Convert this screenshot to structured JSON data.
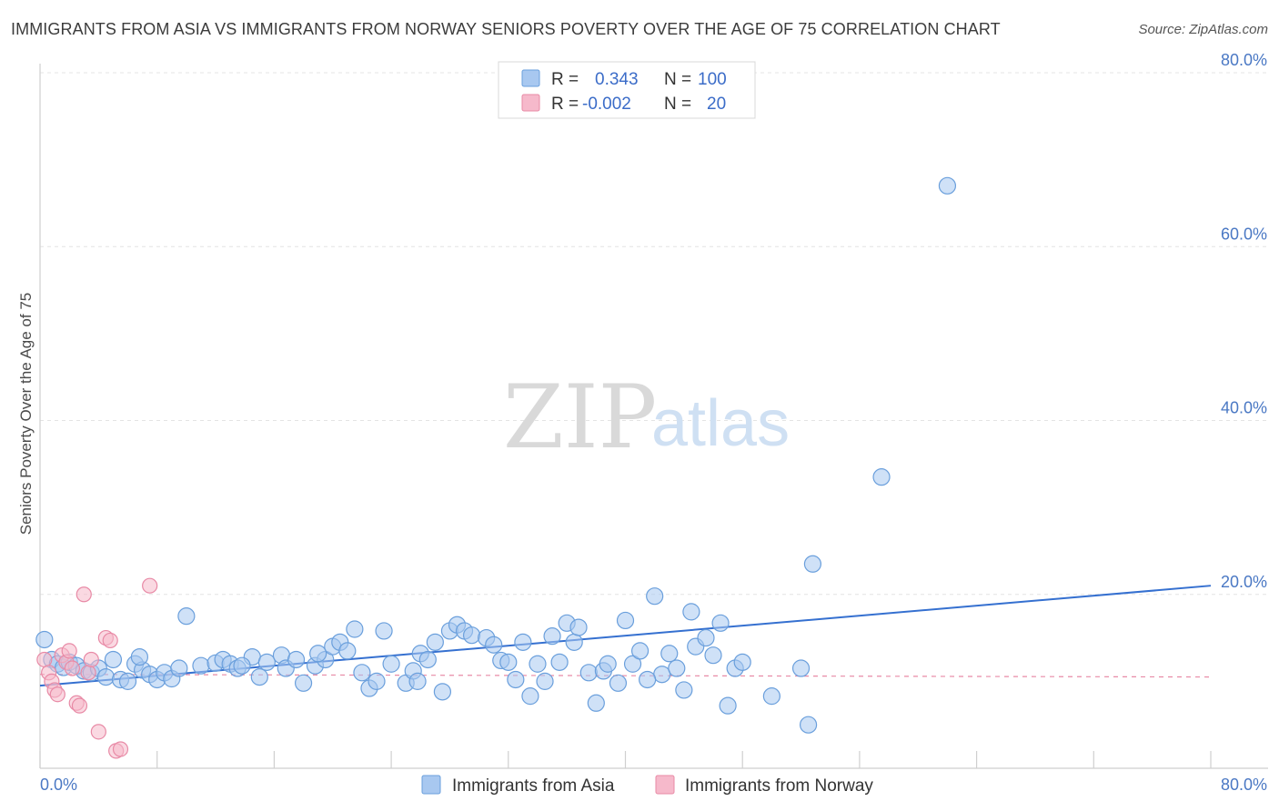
{
  "title": "IMMIGRANTS FROM ASIA VS IMMIGRANTS FROM NORWAY SENIORS POVERTY OVER THE AGE OF 75 CORRELATION CHART",
  "source": "Source: ZipAtlas.com",
  "watermark": {
    "zip": "ZIP",
    "atlas": "atlas"
  },
  "legend": {
    "rows": [
      {
        "r_label": "R =",
        "r_value": "0.343",
        "n_label": "N =",
        "n_value": "100",
        "color": "#a8c8f0"
      },
      {
        "r_label": "R =",
        "r_value": "-0.002",
        "n_label": "N =",
        "n_value": "20",
        "color": "#f6b9cb"
      }
    ]
  },
  "chart_data": {
    "type": "scatter",
    "title": "IMMIGRANTS FROM ASIA VS IMMIGRANTS FROM NORWAY SENIORS POVERTY OVER THE AGE OF 75 CORRELATION CHART",
    "xlabel": "",
    "ylabel": "Seniors Poverty Over the Age of 75",
    "xlim": [
      0,
      80
    ],
    "ylim": [
      0,
      80
    ],
    "x_tick_labels": [
      "0.0%",
      "80.0%"
    ],
    "y_tick_labels": [
      "20.0%",
      "40.0%",
      "60.0%",
      "80.0%"
    ],
    "y_ticks": [
      20,
      40,
      60,
      80
    ],
    "grid": true,
    "legend_position": "top-center",
    "series": [
      {
        "name": "Immigrants from Asia",
        "color": "#a8c8f0",
        "stroke": "#6a9fdc",
        "trend": {
          "x": [
            0,
            80
          ],
          "y": [
            9.5,
            21.0
          ],
          "color": "#3570d0",
          "style": "solid"
        },
        "points": [
          [
            0.3,
            14.8
          ],
          [
            0.8,
            12.5
          ],
          [
            1.2,
            12.0
          ],
          [
            1.6,
            11.6
          ],
          [
            2.0,
            12.2
          ],
          [
            2.5,
            11.8
          ],
          [
            3.0,
            11.2
          ],
          [
            3.5,
            11.0
          ],
          [
            4.0,
            11.5
          ],
          [
            4.5,
            10.5
          ],
          [
            5.0,
            12.5
          ],
          [
            5.5,
            10.2
          ],
          [
            6.0,
            10.0
          ],
          [
            6.5,
            12.0
          ],
          [
            7.0,
            11.3
          ],
          [
            7.5,
            10.8
          ],
          [
            8.0,
            10.2
          ],
          [
            8.5,
            11.0
          ],
          [
            9.0,
            10.3
          ],
          [
            9.5,
            11.5
          ],
          [
            10.0,
            17.5
          ],
          [
            11.0,
            11.8
          ],
          [
            12.0,
            12.1
          ],
          [
            12.5,
            12.5
          ],
          [
            13.0,
            12.0
          ],
          [
            13.5,
            11.5
          ],
          [
            14.5,
            12.8
          ],
          [
            15.0,
            10.5
          ],
          [
            15.5,
            12.2
          ],
          [
            16.5,
            13.0
          ],
          [
            16.8,
            11.5
          ],
          [
            17.5,
            12.5
          ],
          [
            18.0,
            9.8
          ],
          [
            18.8,
            11.8
          ],
          [
            19.5,
            12.5
          ],
          [
            20.0,
            14.0
          ],
          [
            20.5,
            14.5
          ],
          [
            21.0,
            13.5
          ],
          [
            21.5,
            16.0
          ],
          [
            22.0,
            11.0
          ],
          [
            22.5,
            9.2
          ],
          [
            23.0,
            10.0
          ],
          [
            23.5,
            15.8
          ],
          [
            24.0,
            12.0
          ],
          [
            25.0,
            9.8
          ],
          [
            25.5,
            11.2
          ],
          [
            26.0,
            13.2
          ],
          [
            26.5,
            12.5
          ],
          [
            27.0,
            14.5
          ],
          [
            27.5,
            8.8
          ],
          [
            28.0,
            15.8
          ],
          [
            28.5,
            16.5
          ],
          [
            29.0,
            15.8
          ],
          [
            29.5,
            15.3
          ],
          [
            30.5,
            15.0
          ],
          [
            31.0,
            14.2
          ],
          [
            31.5,
            12.4
          ],
          [
            32.0,
            12.2
          ],
          [
            32.5,
            10.2
          ],
          [
            33.0,
            14.5
          ],
          [
            33.5,
            8.3
          ],
          [
            34.5,
            10.0
          ],
          [
            35.0,
            15.2
          ],
          [
            35.5,
            12.2
          ],
          [
            36.0,
            16.7
          ],
          [
            36.5,
            14.5
          ],
          [
            36.8,
            16.2
          ],
          [
            37.5,
            11.0
          ],
          [
            38.0,
            7.5
          ],
          [
            38.5,
            11.2
          ],
          [
            38.8,
            12.0
          ],
          [
            39.5,
            9.8
          ],
          [
            40.0,
            17.0
          ],
          [
            40.5,
            12.0
          ],
          [
            41.0,
            13.5
          ],
          [
            42.0,
            19.8
          ],
          [
            42.5,
            10.8
          ],
          [
            43.0,
            13.2
          ],
          [
            44.0,
            9.0
          ],
          [
            44.5,
            18.0
          ],
          [
            44.8,
            14.0
          ],
          [
            45.5,
            15.0
          ],
          [
            46.0,
            13.0
          ],
          [
            46.5,
            16.7
          ],
          [
            47.0,
            7.2
          ],
          [
            47.5,
            11.5
          ],
          [
            48.0,
            12.2
          ],
          [
            50.0,
            8.3
          ],
          [
            52.0,
            11.5
          ],
          [
            52.5,
            5.0
          ],
          [
            52.8,
            23.5
          ],
          [
            57.5,
            33.5
          ],
          [
            62.0,
            67.0
          ],
          [
            43.5,
            11.5
          ],
          [
            41.5,
            10.2
          ],
          [
            34.0,
            12.0
          ],
          [
            25.8,
            10.0
          ],
          [
            19.0,
            13.2
          ],
          [
            13.8,
            11.8
          ],
          [
            6.8,
            12.8
          ]
        ]
      },
      {
        "name": "Immigrants from Norway",
        "color": "#f6b9cb",
        "stroke": "#e88aa6",
        "trend": {
          "x": [
            0,
            80
          ],
          "y": [
            10.8,
            10.5
          ],
          "color": "#e88aa6",
          "style": "dashed"
        },
        "points": [
          [
            0.3,
            12.5
          ],
          [
            0.6,
            11.0
          ],
          [
            0.8,
            10.0
          ],
          [
            1.0,
            9.0
          ],
          [
            1.2,
            8.5
          ],
          [
            1.5,
            13.0
          ],
          [
            1.8,
            12.2
          ],
          [
            2.0,
            13.5
          ],
          [
            2.2,
            11.5
          ],
          [
            2.5,
            7.5
          ],
          [
            2.7,
            7.2
          ],
          [
            3.0,
            20.0
          ],
          [
            3.3,
            11.0
          ],
          [
            3.5,
            12.5
          ],
          [
            4.0,
            4.2
          ],
          [
            4.5,
            15.0
          ],
          [
            4.8,
            14.7
          ],
          [
            5.2,
            2.0
          ],
          [
            5.5,
            2.2
          ],
          [
            7.5,
            21.0
          ]
        ]
      }
    ]
  }
}
